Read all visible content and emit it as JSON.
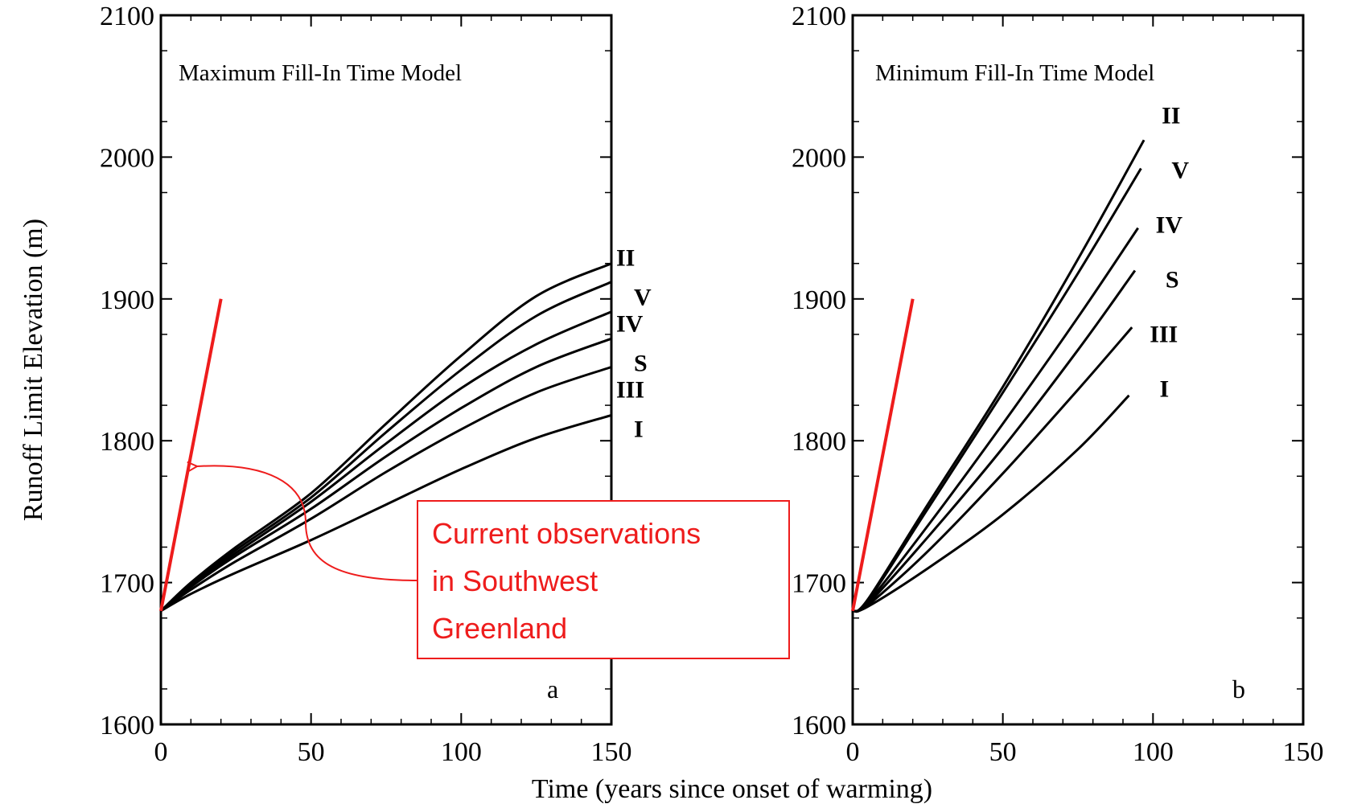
{
  "chart_data": [
    {
      "type": "line",
      "panel_label": "a",
      "title": "Maximum Fill-In Time Model",
      "xlabel": "Time (years since onset of warming)",
      "ylabel": "Runoff Limit Elevation (m)",
      "xlim": [
        0,
        150
      ],
      "ylim": [
        1600,
        2100
      ],
      "xticks": [
        "0",
        "50",
        "100",
        "150"
      ],
      "yticks": [
        "1600",
        "1700",
        "1800",
        "1900",
        "2000",
        "2100"
      ],
      "grid": false,
      "series": [
        {
          "name": "II",
          "x": [
            0,
            10,
            25,
            50,
            75,
            100,
            125,
            150
          ],
          "y": [
            1680,
            1700,
            1725,
            1763,
            1812,
            1860,
            1902,
            1925
          ]
        },
        {
          "name": "V",
          "x": [
            0,
            10,
            25,
            50,
            75,
            100,
            125,
            150
          ],
          "y": [
            1680,
            1699,
            1723,
            1760,
            1806,
            1850,
            1888,
            1912
          ]
        },
        {
          "name": "IV",
          "x": [
            0,
            10,
            25,
            50,
            75,
            100,
            125,
            150
          ],
          "y": [
            1680,
            1698,
            1721,
            1757,
            1798,
            1837,
            1868,
            1891
          ]
        },
        {
          "name": "S",
          "x": [
            0,
            10,
            25,
            50,
            75,
            100,
            125,
            150
          ],
          "y": [
            1680,
            1697,
            1719,
            1752,
            1789,
            1823,
            1852,
            1872
          ]
        },
        {
          "name": "III",
          "x": [
            0,
            10,
            25,
            50,
            75,
            100,
            125,
            150
          ],
          "y": [
            1680,
            1695,
            1715,
            1745,
            1778,
            1808,
            1834,
            1852
          ]
        },
        {
          "name": "I",
          "x": [
            0,
            10,
            25,
            50,
            75,
            100,
            125,
            150
          ],
          "y": [
            1680,
            1692,
            1707,
            1730,
            1755,
            1780,
            1802,
            1818
          ]
        }
      ],
      "annotation_line": {
        "x": [
          0,
          20
        ],
        "y": [
          1680,
          1900
        ],
        "color": "#ee1c1c"
      },
      "annotation_arrow_target": {
        "x": 11,
        "y": 1782
      }
    },
    {
      "type": "line",
      "panel_label": "b",
      "title": "Minimum Fill-In Time Model",
      "xlim": [
        0,
        150
      ],
      "ylim": [
        1600,
        2100
      ],
      "xticks": [
        "0",
        "50",
        "100",
        "150"
      ],
      "yticks": [
        "1600",
        "1700",
        "1800",
        "1900",
        "2000",
        "2100"
      ],
      "grid": false,
      "series": [
        {
          "name": "II",
          "x": [
            0,
            5,
            25,
            50,
            75,
            97
          ],
          "y": [
            1680,
            1688,
            1755,
            1838,
            1928,
            2012
          ]
        },
        {
          "name": "V",
          "x": [
            0,
            5,
            25,
            50,
            75,
            96
          ],
          "y": [
            1680,
            1687,
            1752,
            1834,
            1918,
            1992
          ]
        },
        {
          "name": "IV",
          "x": [
            0,
            5,
            25,
            50,
            75,
            95
          ],
          "y": [
            1680,
            1686,
            1740,
            1812,
            1887,
            1950
          ]
        },
        {
          "name": "S",
          "x": [
            0,
            5,
            25,
            50,
            75,
            94
          ],
          "y": [
            1680,
            1685,
            1732,
            1795,
            1864,
            1920
          ]
        },
        {
          "name": "III",
          "x": [
            0,
            5,
            25,
            50,
            75,
            93
          ],
          "y": [
            1680,
            1684,
            1722,
            1777,
            1836,
            1880
          ]
        },
        {
          "name": "I",
          "x": [
            0,
            5,
            25,
            50,
            75,
            92
          ],
          "y": [
            1680,
            1683,
            1710,
            1748,
            1794,
            1832
          ]
        }
      ],
      "annotation_line": {
        "x": [
          0,
          20
        ],
        "y": [
          1680,
          1900
        ],
        "color": "#ee1c1c"
      }
    }
  ],
  "annotation": {
    "text_lines": [
      "Current observations",
      "in Southwest",
      "Greenland"
    ],
    "color": "#ee1c1c"
  }
}
